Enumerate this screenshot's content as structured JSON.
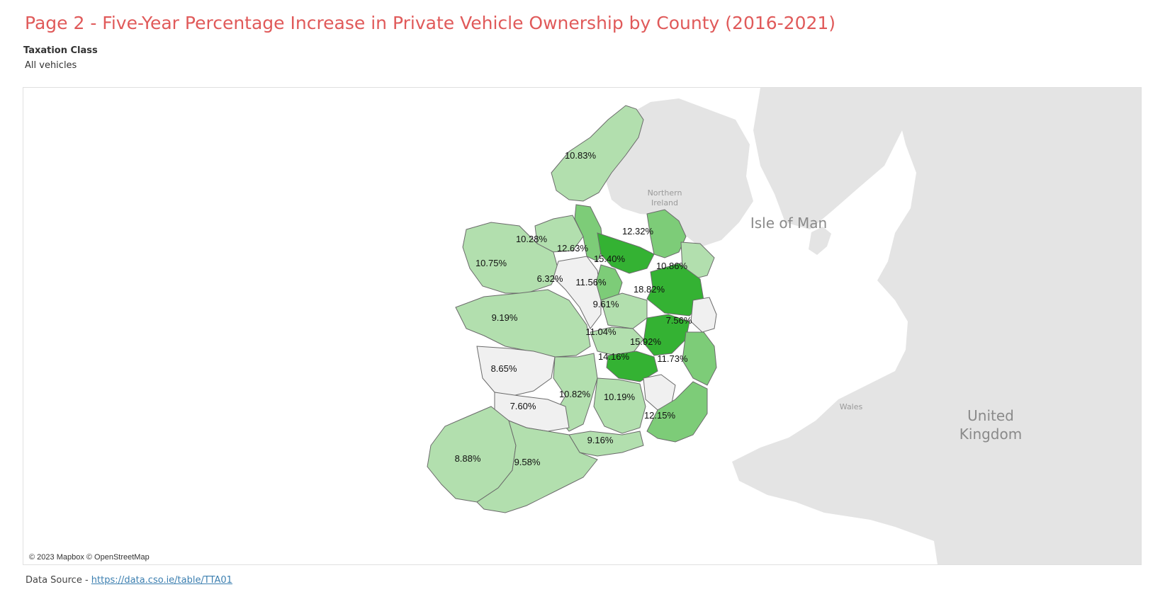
{
  "title": "Page 2 - Five-Year Percentage Increase in Private Vehicle Ownership by County (2016-2021)",
  "filter": {
    "label": "Taxation Class",
    "value": "All vehicles"
  },
  "map": {
    "attribution": "© 2023 Mapbox © OpenStreetMap",
    "places": {
      "northern_ireland_line1": "Northern",
      "northern_ireland_line2": "Ireland",
      "isle_of_man": "Isle of Man",
      "wales": "Wales",
      "uk_line1": "United",
      "uk_line2": "Kingdom"
    },
    "colors": {
      "none": "#f0f0f0",
      "light": "#b2dfae",
      "medium": "#7dcc78",
      "dark": "#34b233",
      "land": "#e4e4e4"
    },
    "labels": [
      "10.83%",
      "10.28%",
      "12.63%",
      "12.32%",
      "15.40%",
      "10.75%",
      "6.32%",
      "10.86%",
      "11.56%",
      "18.82%",
      "9.61%",
      "9.19%",
      "7.56%",
      "11.04%",
      "15.92%",
      "14.16%",
      "11.73%",
      "8.65%",
      "10.82%",
      "10.19%",
      "7.60%",
      "12.15%",
      "9.16%",
      "8.88%",
      "9.58%"
    ]
  },
  "footer": {
    "prefix": "Data Source - ",
    "link": "https://data.cso.ie/table/TTA01"
  }
}
